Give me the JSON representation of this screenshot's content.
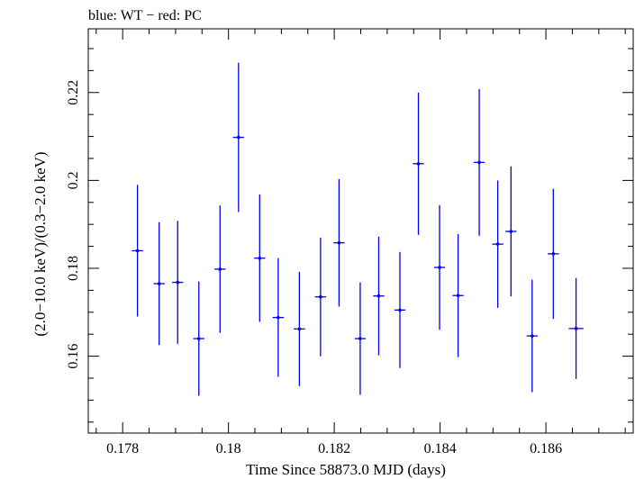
{
  "chart_data": {
    "type": "scatter",
    "title": "blue: WT − red: PC",
    "xlabel": "Time Since 58873.0 MJD (days)",
    "ylabel": "(2.0−10.0 keV)/(0.3−2.0 keV)",
    "xlim": [
      0.17735,
      0.18765
    ],
    "ylim": [
      0.1425,
      0.2345
    ],
    "x_ticks": [
      0.178,
      0.18,
      0.182,
      0.184,
      0.186
    ],
    "x_tick_labels": [
      "0.178",
      "0.18",
      "0.182",
      "0.184",
      "0.186"
    ],
    "y_ticks": [
      0.16,
      0.18,
      0.2,
      0.22
    ],
    "y_tick_labels": [
      "0.16",
      "0.18",
      "0.2",
      "0.22"
    ],
    "grid": false,
    "series": [
      {
        "color": "#0000ee",
        "points": [
          {
            "x": 0.17828,
            "xerr": 0.000105,
            "y": 0.184,
            "yerr": 0.015
          },
          {
            "x": 0.17869,
            "xerr": 0.000105,
            "y": 0.1765,
            "yerr": 0.014
          },
          {
            "x": 0.17904,
            "xerr": 0.000105,
            "y": 0.1768,
            "yerr": 0.014
          },
          {
            "x": 0.17944,
            "xerr": 0.000105,
            "y": 0.164,
            "yerr": 0.013
          },
          {
            "x": 0.17984,
            "xerr": 0.000105,
            "y": 0.1798,
            "yerr": 0.0145
          },
          {
            "x": 0.18019,
            "xerr": 0.000105,
            "y": 0.2098,
            "yerr": 0.017
          },
          {
            "x": 0.18059,
            "xerr": 0.000105,
            "y": 0.1823,
            "yerr": 0.0145
          },
          {
            "x": 0.18094,
            "xerr": 0.000105,
            "y": 0.1688,
            "yerr": 0.0135
          },
          {
            "x": 0.18134,
            "xerr": 0.000105,
            "y": 0.1662,
            "yerr": 0.013
          },
          {
            "x": 0.18174,
            "xerr": 0.000105,
            "y": 0.1735,
            "yerr": 0.0135
          },
          {
            "x": 0.18209,
            "xerr": 0.000105,
            "y": 0.1858,
            "yerr": 0.0145
          },
          {
            "x": 0.18249,
            "xerr": 0.000105,
            "y": 0.164,
            "yerr": 0.0128
          },
          {
            "x": 0.18284,
            "xerr": 0.000105,
            "y": 0.1737,
            "yerr": 0.0135
          },
          {
            "x": 0.18324,
            "xerr": 0.000105,
            "y": 0.1705,
            "yerr": 0.0132
          },
          {
            "x": 0.18359,
            "xerr": 0.000105,
            "y": 0.2038,
            "yerr": 0.0162
          },
          {
            "x": 0.18399,
            "xerr": 0.000105,
            "y": 0.1802,
            "yerr": 0.0142
          },
          {
            "x": 0.18434,
            "xerr": 0.000105,
            "y": 0.1738,
            "yerr": 0.014
          },
          {
            "x": 0.18474,
            "xerr": 0.000105,
            "y": 0.2041,
            "yerr": 0.0167
          },
          {
            "x": 0.18509,
            "xerr": 0.000105,
            "y": 0.1855,
            "yerr": 0.0145
          },
          {
            "x": 0.18534,
            "xerr": 0.000105,
            "y": 0.1884,
            "yerr": 0.0148
          },
          {
            "x": 0.18574,
            "xerr": 0.000105,
            "y": 0.1646,
            "yerr": 0.0128
          },
          {
            "x": 0.18614,
            "xerr": 0.000105,
            "y": 0.1833,
            "yerr": 0.0148
          },
          {
            "x": 0.18657,
            "xerr": 0.00014,
            "y": 0.1663,
            "yerr": 0.0115
          }
        ]
      }
    ]
  }
}
